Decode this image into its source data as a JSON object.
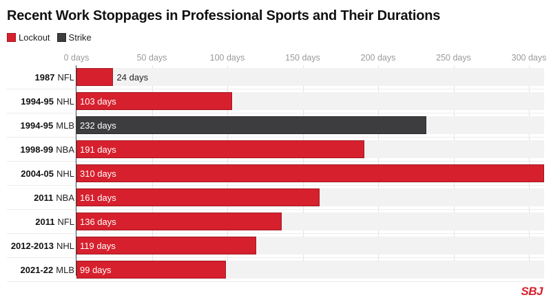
{
  "title": "Recent Work Stoppages in Professional Sports and Their Durations",
  "legend": [
    {
      "label": "Lockout",
      "color": "#d7202d"
    },
    {
      "label": "Strike",
      "color": "#3d3d3f"
    }
  ],
  "axis": {
    "ticks": [
      {
        "value": 0,
        "label": "0 days"
      },
      {
        "value": 50,
        "label": "50 days"
      },
      {
        "value": 100,
        "label": "100 days"
      },
      {
        "value": 150,
        "label": "150 days"
      },
      {
        "value": 200,
        "label": "200 days"
      },
      {
        "value": 250,
        "label": "250 days"
      },
      {
        "value": 300,
        "label": "300 days"
      }
    ]
  },
  "rows": [
    {
      "year": "1987",
      "league": "NFL",
      "days": 24,
      "label": "24 days",
      "type": "Lockout"
    },
    {
      "year": "1994-95",
      "league": "NHL",
      "days": 103,
      "label": "103 days",
      "type": "Lockout"
    },
    {
      "year": "1994-95",
      "league": "MLB",
      "days": 232,
      "label": "232 days",
      "type": "Strike"
    },
    {
      "year": "1998-99",
      "league": "NBA",
      "days": 191,
      "label": "191 days",
      "type": "Lockout"
    },
    {
      "year": "2004-05",
      "league": "NHL",
      "days": 310,
      "label": "310 days",
      "type": "Lockout"
    },
    {
      "year": "2011",
      "league": "NBA",
      "days": 161,
      "label": "161 days",
      "type": "Lockout"
    },
    {
      "year": "2011",
      "league": "NFL",
      "days": 136,
      "label": "136 days",
      "type": "Lockout"
    },
    {
      "year": "2012-2013",
      "league": "NHL",
      "days": 119,
      "label": "119 days",
      "type": "Lockout"
    },
    {
      "year": "2021-22",
      "league": "MLB",
      "days": 99,
      "label": "99 days",
      "type": "Lockout"
    }
  ],
  "logo": "SBJ",
  "chart_data": {
    "type": "bar",
    "orientation": "horizontal",
    "title": "Recent Work Stoppages in Professional Sports and Their Durations",
    "xlabel": "",
    "ylabel": "",
    "xlim": [
      0,
      310
    ],
    "categories": [
      "1987 NFL",
      "1994-95 NHL",
      "1994-95 MLB",
      "1998-99 NBA",
      "2004-05 NHL",
      "2011 NBA",
      "2011 NFL",
      "2012-2013 NHL",
      "2021-22 MLB"
    ],
    "values": [
      24,
      103,
      232,
      191,
      310,
      161,
      136,
      119,
      99
    ],
    "types": [
      "Lockout",
      "Lockout",
      "Strike",
      "Lockout",
      "Lockout",
      "Lockout",
      "Lockout",
      "Lockout",
      "Lockout"
    ],
    "legend": [
      "Lockout",
      "Strike"
    ],
    "legend_position": "top-left",
    "tick_labels": [
      "0 days",
      "50 days",
      "100 days",
      "150 days",
      "200 days",
      "250 days",
      "300 days"
    ],
    "grid": true
  }
}
